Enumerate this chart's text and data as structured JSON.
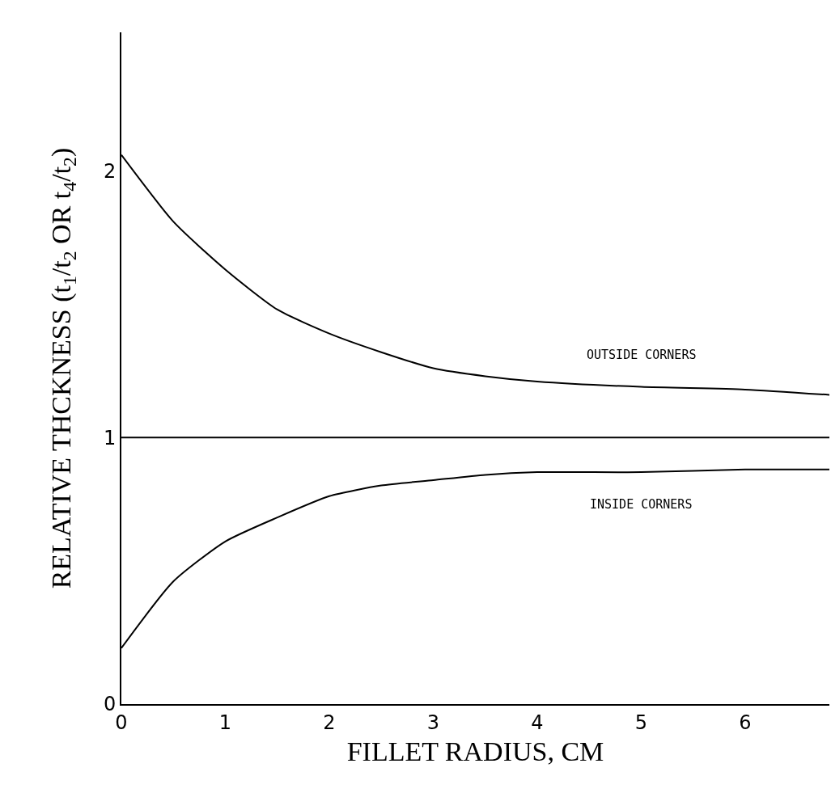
{
  "chart_data": {
    "type": "line",
    "xlabel": "FILLET RADIUS, CM",
    "ylabel": "RELATIVE THCKNESS (t$_{1}$/t$_{2}$ OR t$_{4}$/t$_{2}$)",
    "x": [
      0,
      0.5,
      1,
      1.5,
      2,
      2.5,
      3,
      3.5,
      4,
      5,
      6,
      6.81
    ],
    "series": [
      {
        "name": "OUTSIDE CORNERS",
        "color": "#000000",
        "values": [
          2.06,
          1.81,
          1.63,
          1.48,
          1.39,
          1.32,
          1.26,
          1.23,
          1.21,
          1.19,
          1.18,
          1.16
        ]
      },
      {
        "name": "INSIDE CORNERS",
        "color": "#000000",
        "values": [
          0.21,
          0.46,
          0.61,
          0.7,
          0.78,
          0.82,
          0.84,
          0.86,
          0.87,
          0.87,
          0.88,
          0.88
        ]
      }
    ],
    "ref_lines": [
      {
        "axis": "y",
        "value": 1,
        "color": "#000000"
      }
    ],
    "xlim": [
      0,
      6.81
    ],
    "xticks": [
      0,
      1,
      2,
      3,
      4,
      5,
      6
    ],
    "ylim": [
      0,
      2.52
    ],
    "yticks": [
      0,
      1,
      2
    ],
    "grid": false,
    "legend": false,
    "marker": "none",
    "line_style": "solid"
  }
}
